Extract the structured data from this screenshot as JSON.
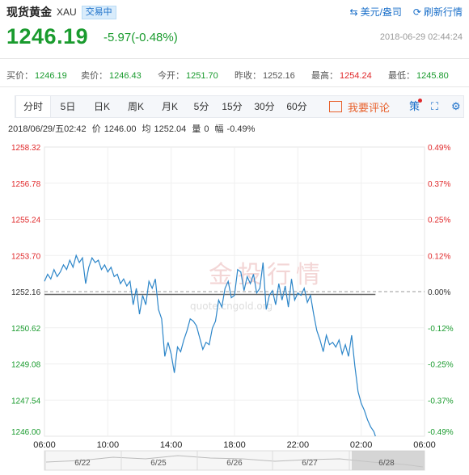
{
  "header": {
    "title": "现货黄金",
    "code": "XAU",
    "status": "交易中",
    "link_currency": "美元/盎司",
    "link_refresh": "刷新行情",
    "price": "1246.19",
    "change": "-5.97(-0.48%)",
    "timestamp": "2018-06-29 02:44:24"
  },
  "quotes": [
    {
      "label": "买价：",
      "value": "1246.19",
      "color": "green"
    },
    {
      "label": "卖价：",
      "value": "1246.43",
      "color": "green"
    },
    {
      "label": "今开：",
      "value": "1251.70",
      "color": "green"
    },
    {
      "label": "昨收：",
      "value": "1252.16",
      "color": "plain"
    },
    {
      "label": "最高：",
      "value": "1254.24",
      "color": "red"
    },
    {
      "label": "最低：",
      "value": "1245.80",
      "color": "green"
    }
  ],
  "tabs": [
    "分时",
    "5日",
    "日K",
    "周K",
    "月K",
    "5分",
    "15分",
    "30分",
    "60分"
  ],
  "active_tab": "分时",
  "comment_label": "我要评论",
  "strategy_label": "策",
  "info": {
    "date": "2018/06/29/五02:42",
    "price_label": "价",
    "price": "1246.00",
    "avg_label": "均",
    "avg": "1252.04",
    "vol_label": "量",
    "vol": "0",
    "amp_label": "幅",
    "amp": "-0.49%"
  },
  "watermark": {
    "cn": "金投行情",
    "en": "quote.cngold.org"
  },
  "chart_data": {
    "type": "line",
    "y_ticks": [
      "1258.32",
      "1256.78",
      "1255.24",
      "1253.70",
      "1252.16",
      "1250.62",
      "1249.08",
      "1247.54",
      "1246.00"
    ],
    "y_pct": [
      "0.49%",
      "0.37%",
      "0.25%",
      "0.12%",
      "0.00%",
      "-0.12%",
      "-0.25%",
      "-0.37%",
      "-0.49%"
    ],
    "ylim": [
      1246.0,
      1258.32
    ],
    "baseline": 1252.16,
    "average": 1252.04,
    "x_ticks": [
      "06:00",
      "10:00",
      "14:00",
      "18:00",
      "22:00",
      "02:00",
      "06:00"
    ],
    "xlim_hours": [
      0,
      24
    ],
    "brush_labels": [
      "6/22",
      "6/25",
      "6/26",
      "6/27",
      "6/28"
    ],
    "x": [
      0,
      0.2,
      0.4,
      0.6,
      0.8,
      1.0,
      1.2,
      1.4,
      1.6,
      1.8,
      2.0,
      2.2,
      2.4,
      2.6,
      2.8,
      3.0,
      3.2,
      3.4,
      3.6,
      3.8,
      4.0,
      4.2,
      4.4,
      4.6,
      4.8,
      5.0,
      5.2,
      5.4,
      5.6,
      5.8,
      6.0,
      6.2,
      6.4,
      6.6,
      6.8,
      7.0,
      7.2,
      7.4,
      7.6,
      7.8,
      8.0,
      8.2,
      8.4,
      8.6,
      8.8,
      9.0,
      9.2,
      9.4,
      9.6,
      9.8,
      10.0,
      10.2,
      10.4,
      10.6,
      10.8,
      11.0,
      11.2,
      11.4,
      11.6,
      11.8,
      12.0,
      12.2,
      12.4,
      12.6,
      12.8,
      13.0,
      13.2,
      13.4,
      13.6,
      13.8,
      14.0,
      14.2,
      14.4,
      14.6,
      14.8,
      15.0,
      15.2,
      15.4,
      15.6,
      15.8,
      16.0,
      16.2,
      16.4,
      16.6,
      16.8,
      17.0,
      17.2,
      17.4,
      17.6,
      17.8,
      18.0,
      18.2,
      18.4,
      18.6,
      18.8,
      19.0,
      19.2,
      19.4,
      19.6,
      19.8,
      20.0,
      20.2,
      20.4,
      20.6,
      20.8,
      20.9
    ],
    "y": [
      1252.6,
      1252.9,
      1252.7,
      1253.1,
      1252.8,
      1253.0,
      1253.3,
      1253.1,
      1253.5,
      1253.2,
      1253.7,
      1253.4,
      1253.6,
      1252.5,
      1253.2,
      1253.6,
      1253.4,
      1253.5,
      1253.1,
      1253.3,
      1253.0,
      1253.2,
      1252.8,
      1252.9,
      1252.5,
      1252.7,
      1252.4,
      1252.6,
      1251.6,
      1252.3,
      1251.2,
      1252.0,
      1251.6,
      1252.6,
      1252.3,
      1252.7,
      1251.4,
      1251.0,
      1249.4,
      1250.0,
      1249.5,
      1248.7,
      1249.8,
      1249.6,
      1250.1,
      1250.5,
      1251.0,
      1250.9,
      1250.7,
      1250.2,
      1249.7,
      1250.0,
      1249.9,
      1250.6,
      1250.9,
      1251.8,
      1251.5,
      1252.3,
      1252.6,
      1251.9,
      1252.0,
      1253.1,
      1253.0,
      1252.2,
      1252.8,
      1252.5,
      1252.9,
      1252.1,
      1252.3,
      1253.4,
      1251.4,
      1252.0,
      1252.2,
      1251.6,
      1252.5,
      1251.8,
      1252.4,
      1251.5,
      1252.7,
      1251.8,
      1252.1,
      1252.0,
      1252.3,
      1251.7,
      1252.0,
      1251.2,
      1250.5,
      1250.1,
      1249.6,
      1250.3,
      1249.9,
      1250.0,
      1249.8,
      1250.1,
      1249.5,
      1249.9,
      1249.4,
      1250.3,
      1249.0,
      1247.9,
      1247.4,
      1247.1,
      1246.7,
      1246.4,
      1246.2,
      1246.0
    ]
  }
}
